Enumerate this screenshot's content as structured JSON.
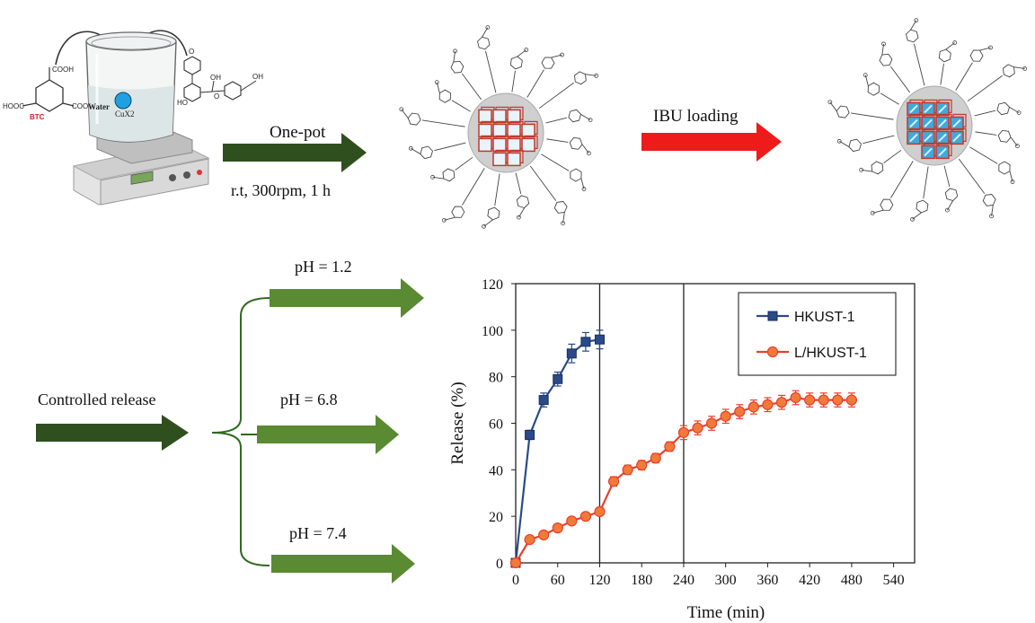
{
  "synthesis": {
    "reagent_left": {
      "label": "BTC",
      "groups": [
        "COOH",
        "HOOC",
        "COOH"
      ]
    },
    "beaker": {
      "liquid_label": "Water",
      "salt_label": "CuX2"
    },
    "ligand_groups": [
      "OH",
      "HO",
      "OH",
      "O",
      "O"
    ],
    "arrow_one_pot": {
      "label": "One-pot",
      "conditions": "r.t, 300rpm, 1 h"
    },
    "arrow_ibu": {
      "label": "IBU loading"
    }
  },
  "release": {
    "label": "Controlled release",
    "branches": [
      "pH = 1.2",
      "pH = 6.8",
      "pH = 7.4"
    ]
  },
  "colors": {
    "dark_green": "#2f4f1f",
    "mid_green": "#5a8a32",
    "red_arrow": "#ee1b1b",
    "series_blue": "#2a4a8a",
    "series_red": "#e8402a",
    "cube_red": "#c0392b",
    "cube_blue": "#3fa9dc",
    "core_gray": "#cfcfcf"
  },
  "chart_data": {
    "type": "line",
    "xlabel": "Time (min)",
    "ylabel": "Release (%)",
    "xlim": [
      0,
      570
    ],
    "ylim": [
      0,
      120
    ],
    "x_ticks": [
      0,
      60,
      120,
      180,
      240,
      300,
      360,
      420,
      480,
      540
    ],
    "y_ticks": [
      0,
      20,
      40,
      60,
      80,
      100,
      120
    ],
    "vertical_lines": [
      120,
      240
    ],
    "legend_position": "top-right",
    "series": [
      {
        "name": "HKUST-1",
        "marker": "square",
        "x": [
          0,
          20,
          40,
          60,
          80,
          100,
          120
        ],
        "y": [
          0,
          55,
          70,
          79,
          90,
          95,
          96
        ],
        "err": [
          0,
          2,
          3,
          3,
          4,
          4,
          4
        ]
      },
      {
        "name": "L/HKUST-1",
        "marker": "circle",
        "x": [
          0,
          20,
          40,
          60,
          80,
          100,
          120,
          140,
          160,
          180,
          200,
          220,
          240,
          260,
          280,
          300,
          320,
          340,
          360,
          380,
          400,
          420,
          440,
          460,
          480
        ],
        "y": [
          0,
          10,
          12,
          15,
          18,
          20,
          22,
          35,
          40,
          42,
          45,
          50,
          56,
          58,
          60,
          63,
          65,
          67,
          68,
          69,
          71,
          70,
          70,
          70,
          70
        ],
        "err": [
          0,
          1,
          1,
          1,
          1,
          1,
          1,
          2,
          2,
          2,
          2,
          2,
          3,
          3,
          3,
          3,
          3,
          3,
          3,
          3,
          3,
          3,
          3,
          3,
          3
        ]
      }
    ]
  }
}
